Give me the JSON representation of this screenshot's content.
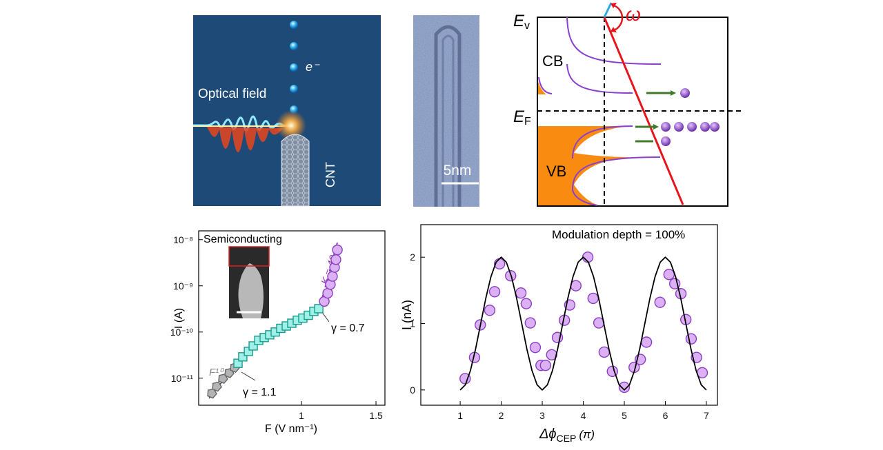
{
  "illustration": {
    "field_label": "Optical field",
    "electron_label": "e⁻",
    "tube_label": "CNT"
  },
  "tem": {
    "scale_label": "5nm"
  },
  "band_diagram": {
    "vacuum_level": {
      "main": "E",
      "sub": "v"
    },
    "frequency_label": "ω",
    "conduction_label": "CB",
    "fermi_level": {
      "main": "E",
      "sub": "F"
    },
    "valence_label": "VB"
  },
  "chart_data": [
    {
      "type": "scatter",
      "ylog": true,
      "xlim": [
        0.31,
        1.56
      ],
      "ylim": [
        2.6e-12,
        1.55e-08
      ],
      "xticks": [
        1,
        1.5
      ],
      "yticks": [
        {
          "value": 1e-11,
          "label": "10⁻¹¹"
        },
        {
          "value": 1e-10,
          "label": "10⁻¹⁰"
        },
        {
          "value": 1e-09,
          "label": "10⁻⁹"
        },
        {
          "value": 1e-08,
          "label": "10⁻⁸"
        }
      ],
      "xlabel": "F (V nm⁻¹)",
      "ylabel": "I (A)",
      "annotations": {
        "inset_label": "Semiconducting",
        "fit_label": "F¹⁰",
        "slope_label": "K = 40",
        "gamma_high": "γ = 0.7",
        "gamma_low": "γ = 1.1"
      },
      "series": [
        {
          "marker": "pentagon",
          "color": "#b4b4b4",
          "edgecolor": "#666666",
          "x": [
            0.398,
            0.431,
            0.472,
            0.514,
            0.551
          ],
          "values": [
            4.7e-12,
            6.6e-12,
            9.8e-12,
            1.3e-11,
            1.7e-11
          ]
        },
        {
          "marker": "square",
          "color": "#9ff0e6",
          "edgecolor": "#1b9a8e",
          "x": [
            0.574,
            0.606,
            0.644,
            0.676,
            0.713,
            0.75,
            0.787,
            0.824,
            0.861,
            0.898,
            0.935,
            0.972,
            1.009,
            1.046,
            1.083,
            1.116
          ],
          "values": [
            2.1e-11,
            2.9e-11,
            3.8e-11,
            5e-11,
            6.6e-11,
            7.6e-11,
            8.7e-11,
            1e-10,
            1.2e-10,
            1.35e-10,
            1.55e-10,
            1.8e-10,
            2e-10,
            2.3e-10,
            2.8e-10,
            3.2e-10
          ]
        },
        {
          "marker": "circle",
          "color": "#dcb0f4",
          "edgecolor": "#8a3fc0",
          "x": [
            1.153,
            1.176,
            1.194,
            1.208,
            1.222,
            1.231,
            1.241
          ],
          "values": [
            4.6e-10,
            6.9e-10,
            1.07e-09,
            1.6e-09,
            2.5e-09,
            3.7e-09,
            6e-09
          ]
        }
      ]
    },
    {
      "type": "scatter",
      "ylog": false,
      "xlim": [
        0.04,
        7.27
      ],
      "ylim": [
        -0.23,
        2.49
      ],
      "xticks": [
        1,
        2,
        3,
        4,
        5,
        6,
        7
      ],
      "yticks": [
        0,
        1,
        2
      ],
      "xlabel": {
        "symbol": "Δϕ",
        "sub": "CEP",
        "unit": "(π)"
      },
      "ylabel": "I (nA)",
      "annotation": "Modulation depth = 100%",
      "series": [
        {
          "marker": "circle",
          "color": "#dcb0f4",
          "edgecolor": "#8a3fc0",
          "x": [
            1.12,
            1.35,
            1.49,
            1.72,
            1.84,
            1.96,
            2.23,
            2.48,
            2.61,
            2.71,
            2.83,
            2.97,
            3.08,
            3.23,
            3.37,
            3.54,
            3.67,
            3.82,
            4.11,
            4.24,
            4.38,
            4.51,
            4.71,
            5.0,
            5.24,
            5.39,
            5.54,
            5.87,
            6.09,
            6.23,
            6.38,
            6.5,
            6.63,
            6.76,
            6.9
          ],
          "values": [
            0.17,
            0.49,
            0.98,
            1.2,
            1.48,
            1.9,
            1.72,
            1.46,
            1.3,
            1.01,
            0.64,
            0.37,
            0.37,
            0.53,
            0.79,
            1.05,
            1.28,
            1.57,
            2.0,
            1.38,
            1.01,
            0.57,
            0.28,
            0.04,
            0.34,
            0.46,
            0.72,
            1.32,
            1.74,
            1.6,
            1.45,
            1.06,
            0.77,
            0.49,
            0.26
          ]
        },
        {
          "line": true,
          "color": "#000000",
          "x": [
            1,
            1.125,
            1.25,
            1.375,
            1.5,
            1.625,
            1.75,
            1.875,
            2,
            2.125,
            2.25,
            2.375,
            2.5,
            2.625,
            2.75,
            2.875,
            3,
            3.125,
            3.25,
            3.375,
            3.5,
            3.625,
            3.75,
            3.875,
            4,
            4.125,
            4.25,
            4.375,
            4.5,
            4.625,
            4.75,
            4.875,
            5,
            5.125,
            5.25,
            5.375,
            5.5,
            5.625,
            5.75,
            5.875,
            6,
            6.125,
            6.25,
            6.375,
            6.5,
            6.625,
            6.75,
            6.875,
            7
          ],
          "values": [
            0,
            0.076,
            0.293,
            0.617,
            1,
            1.383,
            1.707,
            1.924,
            2,
            1.924,
            1.707,
            1.383,
            1,
            0.617,
            0.293,
            0.076,
            0,
            0.076,
            0.293,
            0.617,
            1,
            1.383,
            1.707,
            1.924,
            2,
            1.924,
            1.707,
            1.383,
            1,
            0.617,
            0.293,
            0.076,
            0,
            0.076,
            0.293,
            0.617,
            1,
            1.383,
            1.707,
            1.924,
            2,
            1.924,
            1.707,
            1.383,
            1,
            0.617,
            0.293,
            0.076,
            0
          ]
        }
      ]
    }
  ]
}
